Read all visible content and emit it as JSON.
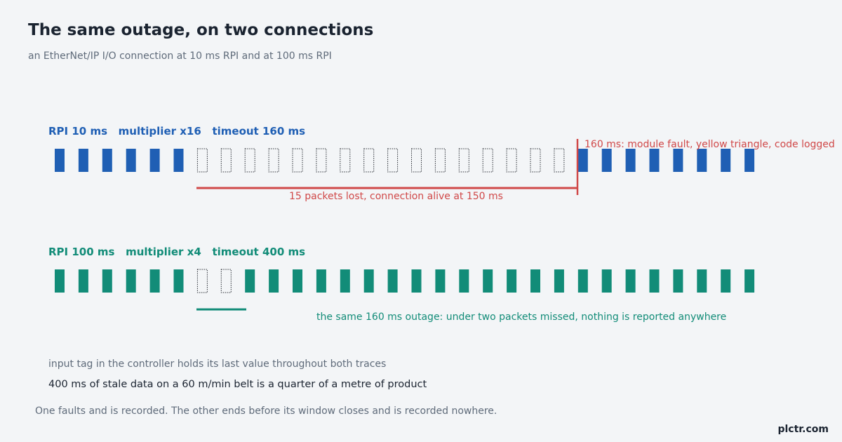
{
  "title": "The same outage, on two connections",
  "subtitle": "an EtherNet/IP I/O connection at 10 ms RPI and at 100 ms RPI",
  "colors": {
    "fast": "#1f5fb4",
    "slow": "#128c78",
    "fault": "#d04848",
    "lost_outline": "#2b2f36"
  },
  "rows": [
    {
      "id": "fast",
      "label": "RPI 10 ms   multiplier x16   timeout 160 ms",
      "rpi_ms": 10,
      "multiplier": 16,
      "timeout_ms": 160,
      "packets_before": 6,
      "packets_lost": 16,
      "packets_after": 8,
      "fault_note": "160 ms: module fault, yellow triangle, code logged",
      "lost_note": "15 packets lost, connection alive at 150 ms"
    },
    {
      "id": "slow",
      "label": "RPI 100 ms   multiplier x4   timeout 400 ms",
      "rpi_ms": 100,
      "multiplier": 4,
      "timeout_ms": 400,
      "packets_before": 6,
      "packets_lost": 2,
      "packets_after": 22,
      "same_note": "the same 160 ms outage: under two packets missed, nothing is reported anywhere"
    }
  ],
  "notes": {
    "hold": "input tag in the controller holds its last value throughout both traces",
    "stale": "400 ms of stale data on a 60 m/min belt is a quarter of a metre of product"
  },
  "footer": "One faults and is recorded. The other ends before its window closes and is recorded nowhere.",
  "brand": "plctr.com"
}
